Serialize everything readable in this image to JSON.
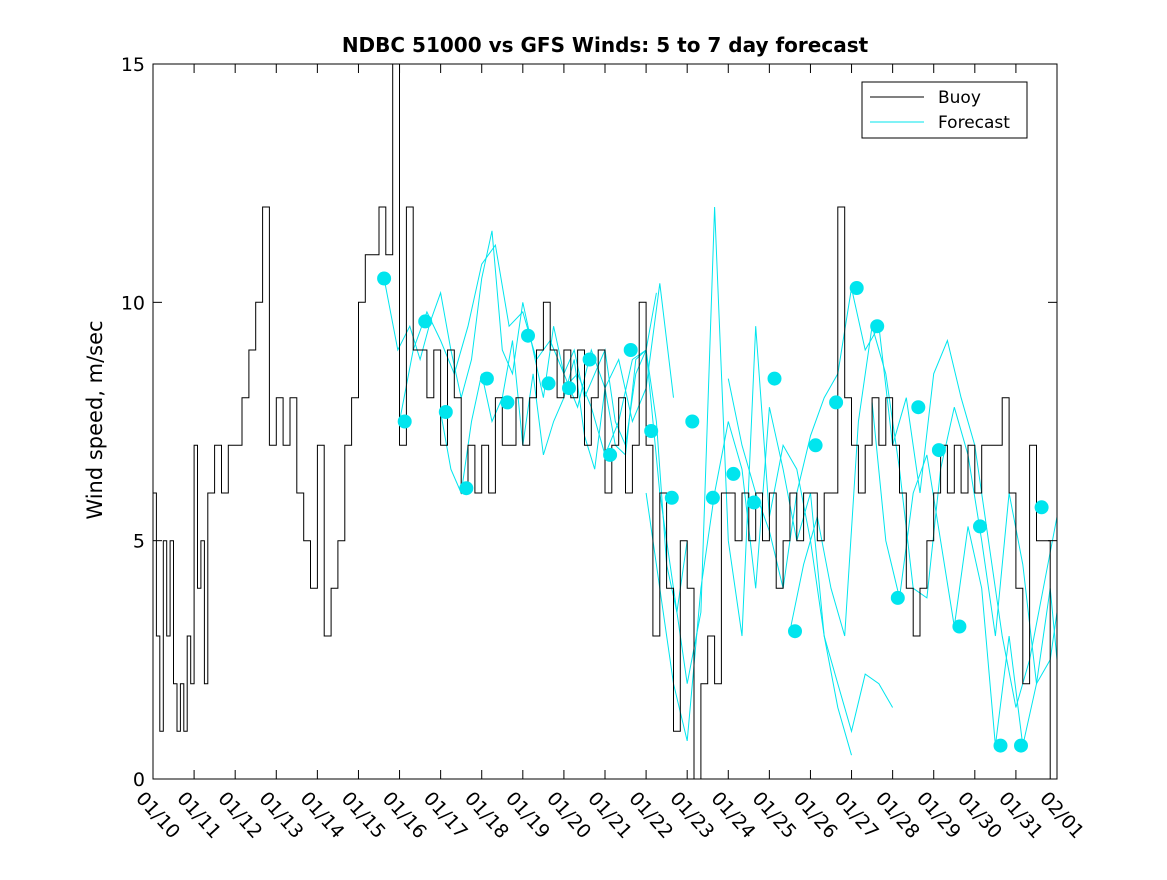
{
  "chart_data": {
    "type": "line",
    "title": "NDBC 51000 vs GFS Winds: 5 to 7 day forecast",
    "xlabel": "",
    "ylabel": "Wind speed, m/sec",
    "x_tick_labels": [
      "01/10",
      "01/11",
      "01/12",
      "01/13",
      "01/14",
      "01/15",
      "01/16",
      "01/17",
      "01/18",
      "01/19",
      "01/20",
      "01/21",
      "01/22",
      "01/23",
      "01/24",
      "01/25",
      "01/26",
      "01/27",
      "01/28",
      "01/29",
      "01/30",
      "01/31",
      "02/01"
    ],
    "xlim": [
      "01/10",
      "02/01"
    ],
    "ylim": [
      0,
      15
    ],
    "y_ticks": [
      0,
      5,
      10,
      15
    ],
    "grid": false,
    "legend_position": "top-right",
    "legend": [
      {
        "label": "Buoy",
        "color": "#000000"
      },
      {
        "label": "Forecast",
        "color": "#00e5ee"
      }
    ],
    "colors": {
      "buoy": "#000000",
      "forecast": "#00e5ee"
    },
    "series": [
      {
        "name": "Buoy",
        "color": "#000000",
        "x": [
          "01/10 00:00",
          "01/10 02:00",
          "01/10 04:00",
          "01/10 06:00",
          "01/10 08:00",
          "01/10 10:00",
          "01/10 12:00",
          "01/10 14:00",
          "01/10 16:00",
          "01/10 18:00",
          "01/10 20:00",
          "01/10 22:00",
          "01/11 00:00",
          "01/11 02:00",
          "01/11 04:00",
          "01/11 06:00",
          "01/11 08:00",
          "01/11 12:00",
          "01/11 16:00",
          "01/11 20:00",
          "01/12 00:00",
          "01/12 04:00",
          "01/12 08:00",
          "01/12 12:00",
          "01/12 16:00",
          "01/12 20:00",
          "01/13 00:00",
          "01/13 04:00",
          "01/13 08:00",
          "01/13 12:00",
          "01/13 16:00",
          "01/13 20:00",
          "01/14 00:00",
          "01/14 04:00",
          "01/14 08:00",
          "01/14 12:00",
          "01/14 16:00",
          "01/14 20:00",
          "01/15 00:00",
          "01/15 04:00",
          "01/15 08:00",
          "01/15 12:00",
          "01/15 16:00",
          "01/15 20:00",
          "01/16 00:00",
          "01/16 04:00",
          "01/16 08:00",
          "01/16 12:00",
          "01/16 16:00",
          "01/16 20:00",
          "01/17 00:00",
          "01/17 04:00",
          "01/17 08:00",
          "01/17 12:00",
          "01/17 16:00",
          "01/17 20:00",
          "01/18 00:00",
          "01/18 04:00",
          "01/18 08:00",
          "01/18 12:00",
          "01/18 16:00",
          "01/18 20:00",
          "01/19 00:00",
          "01/19 04:00",
          "01/19 08:00",
          "01/19 12:00",
          "01/19 16:00",
          "01/19 20:00",
          "01/20 00:00",
          "01/20 04:00",
          "01/20 08:00",
          "01/20 12:00",
          "01/20 16:00",
          "01/20 20:00",
          "01/21 00:00",
          "01/21 04:00",
          "01/21 08:00",
          "01/21 12:00",
          "01/21 16:00",
          "01/21 20:00",
          "01/22 00:00",
          "01/22 04:00",
          "01/22 08:00",
          "01/22 12:00",
          "01/22 16:00",
          "01/22 20:00",
          "01/23 00:00",
          "01/23 04:00",
          "01/23 08:00",
          "01/23 12:00",
          "01/23 16:00",
          "01/23 20:00",
          "01/24 00:00",
          "01/24 04:00",
          "01/24 08:00",
          "01/24 12:00",
          "01/24 16:00",
          "01/24 20:00",
          "01/25 00:00",
          "01/25 04:00",
          "01/25 08:00",
          "01/25 12:00",
          "01/25 16:00",
          "01/25 20:00",
          "01/26 00:00",
          "01/26 04:00",
          "01/26 08:00",
          "01/26 12:00",
          "01/26 16:00",
          "01/26 20:00",
          "01/27 00:00",
          "01/27 04:00",
          "01/27 08:00",
          "01/27 12:00",
          "01/27 16:00",
          "01/27 20:00",
          "01/28 00:00",
          "01/28 04:00",
          "01/28 08:00",
          "01/28 12:00",
          "01/28 16:00",
          "01/28 20:00",
          "01/29 00:00",
          "01/29 04:00",
          "01/29 08:00",
          "01/29 12:00",
          "01/29 16:00",
          "01/29 20:00",
          "01/30 00:00",
          "01/30 04:00",
          "01/30 08:00",
          "01/30 12:00",
          "01/30 16:00",
          "01/30 20:00",
          "01/31 00:00",
          "01/31 04:00",
          "01/31 08:00",
          "01/31 12:00",
          "01/31 16:00",
          "01/31 20:00"
        ],
        "values": [
          6,
          3,
          1,
          5,
          3,
          5,
          2,
          1,
          2,
          1,
          3,
          2,
          7,
          4,
          5,
          2,
          6,
          7,
          6,
          7,
          7,
          8,
          9,
          10,
          12,
          7,
          8,
          7,
          8,
          6,
          5,
          4,
          7,
          3,
          4,
          5,
          7,
          8,
          10,
          11,
          11,
          12,
          11,
          15,
          7,
          12,
          9,
          9,
          8,
          9,
          7,
          9,
          8,
          6,
          7,
          6,
          7,
          6,
          8,
          7,
          7,
          8,
          7,
          8,
          9,
          10,
          9,
          8,
          9,
          8,
          9,
          7,
          8,
          9,
          6,
          7,
          8,
          6,
          7,
          10,
          7,
          3,
          6,
          4,
          1,
          5,
          4,
          0,
          2,
          3,
          2,
          6,
          6,
          5,
          6,
          5,
          6,
          5,
          6,
          4,
          5,
          6,
          5,
          6,
          6,
          5,
          6,
          6,
          12,
          8,
          7,
          6,
          7,
          8,
          7,
          8,
          7,
          6,
          4,
          3,
          4,
          5,
          6,
          7,
          6,
          7,
          6,
          7,
          6,
          7,
          7,
          7,
          8,
          6,
          4,
          2,
          7,
          5,
          5,
          0
        ]
      }
    ],
    "forecast_runs": [
      {
        "x": [
          "01/15 15:00",
          "01/15 23:00",
          "01/16 06:00",
          "01/16 12:00",
          "01/16 18:00",
          "01/17 00:00",
          "01/17 06:00",
          "01/17 12:00",
          "01/17 18:00",
          "01/18 00:00",
          "01/18 06:00",
          "01/18 12:00",
          "01/18 18:00",
          "01/19 00:00",
          "01/19 06:00",
          "01/19 12:00",
          "01/19 18:00",
          "01/20 00:00",
          "01/20 06:00",
          "01/20 12:00",
          "01/20 18:00",
          "01/21 00:00",
          "01/21 06:00",
          "01/21 12:00",
          "01/21 18:00",
          "01/22 00:00",
          "01/22 06:00"
        ],
        "values": [
          10.5,
          9.0,
          9.5,
          8.8,
          9.6,
          10.2,
          9.0,
          8.0,
          8.8,
          10.5,
          11.5,
          9.0,
          8.5,
          10.0,
          9.0,
          8.0,
          9.5,
          8.5,
          9.0,
          8.0,
          8.5,
          9.0,
          7.5,
          7.0,
          8.5,
          9.0,
          10.2
        ]
      },
      {
        "x": [
          "01/16 00:00",
          "01/16 08:00",
          "01/16 16:00",
          "01/17 00:00",
          "01/17 08:00",
          "01/17 16:00",
          "01/18 00:00",
          "01/18 08:00",
          "01/18 16:00",
          "01/19 00:00",
          "01/19 08:00",
          "01/19 16:00",
          "01/20 00:00",
          "01/20 08:00",
          "01/20 16:00",
          "01/21 00:00",
          "01/21 08:00",
          "01/21 16:00",
          "01/22 00:00",
          "01/22 08:00",
          "01/22 16:00"
        ],
        "values": [
          7.5,
          9.0,
          9.8,
          9.2,
          8.5,
          9.5,
          10.8,
          11.2,
          9.5,
          9.8,
          8.8,
          9.2,
          8.5,
          7.8,
          9.0,
          8.2,
          8.8,
          7.5,
          8.2,
          10.4,
          8.0
        ]
      },
      {
        "x": [
          "01/17 00:00",
          "01/17 06:00",
          "01/17 12:00",
          "01/17 18:00",
          "01/18 00:00",
          "01/18 06:00",
          "01/18 12:00",
          "01/18 18:00",
          "01/19 00:00",
          "01/19 06:00",
          "01/19 12:00",
          "01/19 18:00",
          "01/20 00:00",
          "01/20 06:00",
          "01/20 12:00",
          "01/20 18:00",
          "01/21 00:00",
          "01/21 06:00",
          "01/21 12:00",
          "01/21 18:00",
          "01/22 00:00",
          "01/22 06:00",
          "01/22 12:00",
          "01/22 18:00",
          "01/23 00:00"
        ],
        "values": [
          7.7,
          6.5,
          6.0,
          7.5,
          8.5,
          7.5,
          8.0,
          9.2,
          7.0,
          8.5,
          6.8,
          7.5,
          8.0,
          8.8,
          7.2,
          6.5,
          8.2,
          7.0,
          6.8,
          8.8,
          9.0,
          7.5,
          4.5,
          3.5,
          5.0
        ]
      },
      {
        "x": [
          "01/20 00:00",
          "01/20 08:00",
          "01/20 16:00",
          "01/21 00:00",
          "01/21 08:00",
          "01/21 16:00",
          "01/22 00:00",
          "01/22 08:00",
          "01/22 16:00",
          "01/23 00:00",
          "01/23 08:00",
          "01/23 16:00",
          "01/24 00:00",
          "01/24 08:00",
          "01/24 16:00",
          "01/25 00:00",
          "01/25 08:00",
          "01/25 16:00",
          "01/26 00:00",
          "01/26 08:00",
          "01/26 16:00",
          "01/27 00:00"
        ],
        "values": [
          8.2,
          8.5,
          7.8,
          6.8,
          7.5,
          8.8,
          9.0,
          6.0,
          4.0,
          2.0,
          3.5,
          12.0,
          5.0,
          3.0,
          9.5,
          5.5,
          7.0,
          6.5,
          5.0,
          3.0,
          1.5,
          0.5
        ]
      },
      {
        "x": [
          "01/22 00:00",
          "01/22 08:00",
          "01/22 16:00",
          "01/23 00:00",
          "01/23 08:00",
          "01/23 16:00",
          "01/24 00:00",
          "01/24 08:00",
          "01/24 16:00",
          "01/25 00:00",
          "01/25 08:00",
          "01/25 16:00",
          "01/26 00:00",
          "01/26 08:00",
          "01/26 16:00",
          "01/27 00:00",
          "01/27 08:00",
          "01/27 16:00",
          "01/28 00:00"
        ],
        "values": [
          6.0,
          4.0,
          2.0,
          0.8,
          4.0,
          6.0,
          7.5,
          6.5,
          4.0,
          7.8,
          6.5,
          5.0,
          6.0,
          3.0,
          2.0,
          1.0,
          2.2,
          2.0,
          1.5
        ]
      },
      {
        "x": [
          "01/24 00:00",
          "01/24 08:00",
          "01/24 16:00",
          "01/25 00:00",
          "01/25 08:00",
          "01/25 16:00",
          "01/26 00:00",
          "01/26 08:00",
          "01/26 16:00",
          "01/27 00:00",
          "01/27 08:00",
          "01/27 16:00",
          "01/28 00:00",
          "01/28 08:00",
          "01/28 16:00",
          "01/29 00:00",
          "01/29 08:00",
          "01/29 16:00",
          "01/30 00:00",
          "01/30 08:00",
          "01/30 16:00",
          "01/31 00:00",
          "01/31 08:00",
          "01/31 16:00",
          "02/01 00:00"
        ],
        "values": [
          8.4,
          7.0,
          6.0,
          5.2,
          4.0,
          6.0,
          7.2,
          8.0,
          8.5,
          10.3,
          9.0,
          9.5,
          7.0,
          8.0,
          6.0,
          8.5,
          9.2,
          8.0,
          7.0,
          5.0,
          3.0,
          1.5,
          2.5,
          4.0,
          5.5
        ]
      },
      {
        "x": [
          "01/25 12:00",
          "01/25 20:00",
          "01/26 04:00",
          "01/26 12:00",
          "01/26 20:00",
          "01/27 04:00",
          "01/27 12:00",
          "01/27 20:00",
          "01/28 04:00",
          "01/28 12:00",
          "01/28 20:00",
          "01/29 04:00",
          "01/29 12:00",
          "01/29 20:00",
          "01/30 04:00",
          "01/30 12:00",
          "01/30 20:00",
          "01/31 04:00",
          "01/31 12:00",
          "01/31 20:00",
          "02/01 00:00"
        ],
        "values": [
          3.1,
          4.5,
          5.5,
          4.0,
          3.0,
          7.5,
          9.5,
          8.5,
          6.5,
          4.0,
          3.8,
          6.5,
          7.8,
          6.8,
          5.0,
          3.0,
          6.0,
          4.5,
          2.0,
          2.5,
          3.5
        ]
      },
      {
        "x": [
          "01/27 12:00",
          "01/27 20:00",
          "01/28 04:00",
          "01/28 12:00",
          "01/28 20:00",
          "01/29 04:00",
          "01/29 12:00",
          "01/29 20:00",
          "01/30 04:00",
          "01/30 12:00",
          "01/30 20:00",
          "01/31 04:00",
          "01/31 12:00",
          "01/31 20:00",
          "02/01 00:00"
        ],
        "values": [
          7.9,
          5.0,
          3.8,
          6.0,
          6.8,
          5.0,
          3.2,
          5.3,
          4.0,
          0.7,
          3.0,
          0.7,
          2.0,
          4.0,
          2.5
        ]
      }
    ],
    "forecast_markers": {
      "x": [
        "01/15 15:00",
        "01/16 03:00",
        "01/16 15:00",
        "01/17 03:00",
        "01/17 15:00",
        "01/18 03:00",
        "01/18 15:00",
        "01/19 03:00",
        "01/19 15:00",
        "01/20 03:00",
        "01/20 15:00",
        "01/21 03:00",
        "01/21 15:00",
        "01/22 03:00",
        "01/22 15:00",
        "01/23 03:00",
        "01/23 15:00",
        "01/24 03:00",
        "01/24 15:00",
        "01/25 03:00",
        "01/25 15:00",
        "01/26 03:00",
        "01/26 15:00",
        "01/27 03:00",
        "01/27 15:00",
        "01/28 03:00",
        "01/28 15:00",
        "01/29 03:00",
        "01/29 15:00",
        "01/30 03:00",
        "01/30 15:00",
        "01/31 03:00",
        "01/31 15:00"
      ],
      "values": [
        10.5,
        7.5,
        9.6,
        7.7,
        6.1,
        8.4,
        7.9,
        9.3,
        8.3,
        8.2,
        8.8,
        6.8,
        9.0,
        7.3,
        5.9,
        7.5,
        5.9,
        6.4,
        5.8,
        8.4,
        3.1,
        7.0,
        7.9,
        10.3,
        9.5,
        3.8,
        7.8,
        6.9,
        3.2,
        5.3,
        0.7,
        0.7,
        5.7
      ]
    }
  }
}
